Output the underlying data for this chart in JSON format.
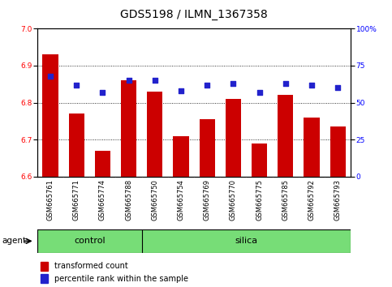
{
  "title": "GDS5198 / ILMN_1367358",
  "samples": [
    "GSM665761",
    "GSM665771",
    "GSM665774",
    "GSM665788",
    "GSM665750",
    "GSM665754",
    "GSM665769",
    "GSM665770",
    "GSM665775",
    "GSM665785",
    "GSM665792",
    "GSM665793"
  ],
  "groups": [
    "control",
    "control",
    "control",
    "control",
    "silica",
    "silica",
    "silica",
    "silica",
    "silica",
    "silica",
    "silica",
    "silica"
  ],
  "transformed_count": [
    6.93,
    6.77,
    6.67,
    6.86,
    6.83,
    6.71,
    6.755,
    6.81,
    6.69,
    6.82,
    6.76,
    6.735
  ],
  "percentile_rank_pct": [
    68,
    62,
    57,
    65,
    65,
    58,
    62,
    63,
    57,
    63,
    62,
    60
  ],
  "ylim_left": [
    6.6,
    7.0
  ],
  "ylim_right": [
    0,
    100
  ],
  "yticks_left": [
    6.6,
    6.7,
    6.8,
    6.9,
    7.0
  ],
  "yticks_right": [
    0,
    25,
    50,
    75,
    100
  ],
  "bar_color": "#cc0000",
  "dot_color": "#2222cc",
  "bg_color": "#c8c8c8",
  "control_color": "#77dd77",
  "group_label_control": "control",
  "group_label_silica": "silica",
  "legend_bar": "transformed count",
  "legend_dot": "percentile rank within the sample",
  "agent_label": "agent",
  "title_fontsize": 10,
  "tick_fontsize": 6.5,
  "sample_fontsize": 6,
  "group_fontsize": 8,
  "legend_fontsize": 7,
  "n_control": 4
}
